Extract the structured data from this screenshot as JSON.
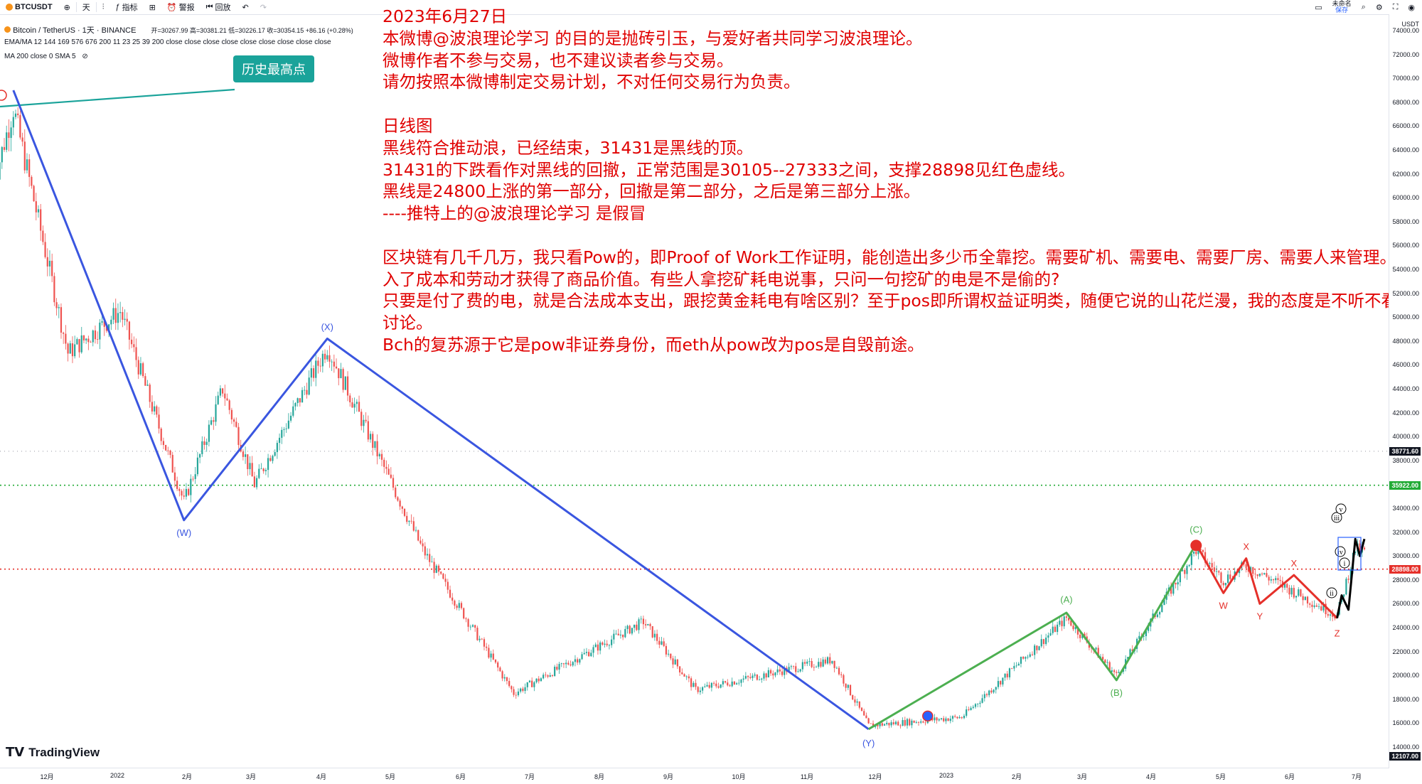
{
  "toolbar": {
    "symbol": "BTCUSDT",
    "interval": "天",
    "indicators_label": "指标",
    "alert_label": "警报",
    "replay_label": "回放",
    "unnamed_label": "未命名",
    "save_label": "保存"
  },
  "legend": {
    "title": "Bitcoin / TetherUS · 1天 · BINANCE",
    "ohlc": "开=30267.99 高=30381.21 低=30226.17 收=30354.15 +86.16 (+0.28%)",
    "indicator1": "EMA/MA 12 144 169 576 676 200 11 23 25 39 200 close close close close close close close close close",
    "indicator2": "MA 200 close 0 SMA 5"
  },
  "note_lines": [
    "2023年6月27日",
    "本微博@波浪理论学习 的目的是抛砖引玉，与爱好者共同学习波浪理论。",
    "微博作者不参与交易，也不建议读者参与交易。",
    "请勿按照本微博制定交易计划，不对任何交易行为负责。",
    "",
    "日线图",
    "黑线符合推动浪，已经结束，31431是黑线的顶。",
    "31431的下跌看作对黑线的回撤，正常范围是30105--27333之间，支撑28898见红色虚线。",
    "黑线是24800上涨的第一部分，回撤是第二部分，之后是第三部分上涨。",
    "----推特上的@波浪理论学习 是假冒",
    "",
    "区块链有几千几万，我只看Pow的，即Proof of Work工作证明，能创造出多少币全靠挖。需要矿机、需要电、需要厂房、需要人来管理。投入了成本和劳动才获得了商品价值。有些人拿挖矿耗电说事，只问一句挖矿的电是不是偷的?",
    "只要是付了费的电，就是合法成本支出，跟挖黄金耗电有啥区别？至于pos即所谓权益证明类，随便它说的山花烂漫，我的态度是不听不看不讨论。",
    "Bch的复苏源于它是pow非证券身份，而eth从pow改为pos是自毁前途。"
  ],
  "callout": "历史最高点",
  "brand": "TradingView",
  "axis": {
    "currency": "USDT",
    "y_ticks": [
      74000,
      72000,
      70000,
      68000,
      66000,
      64000,
      62000,
      60000,
      58000,
      56000,
      54000,
      52000,
      50000,
      48000,
      46000,
      44000,
      42000,
      40000,
      38000,
      36000,
      34000,
      32000,
      30000,
      28000,
      26000,
      24000,
      22000,
      20000,
      18000,
      16000,
      14000
    ],
    "price_tags": [
      {
        "label": "38771.60",
        "color": "#131722"
      },
      {
        "label": "35922.00",
        "color": "#22ab36"
      },
      {
        "label": "28898.00",
        "color": "#e5302a"
      },
      {
        "label": "12107.00",
        "color": "#131722"
      }
    ],
    "x_ticks": [
      "12月",
      "2022",
      "2月",
      "3月",
      "4月",
      "5月",
      "6月",
      "7月",
      "8月",
      "9月",
      "10月",
      "11月",
      "12月",
      "2023",
      "2月",
      "3月",
      "4月",
      "5月",
      "6月",
      "7月"
    ]
  },
  "chart_data": {
    "type": "line",
    "title": "Bitcoin / TetherUS · 1天 · BINANCE",
    "ylabel": "USDT",
    "ylim": [
      12107,
      74500
    ],
    "horizontal_levels": [
      {
        "value": 38771.6,
        "style": "dotted",
        "color": "#9598a1"
      },
      {
        "value": 35922,
        "style": "dotted",
        "color": "#22ab36"
      },
      {
        "value": 28898,
        "style": "dotted",
        "color": "#e5302a"
      }
    ],
    "wave_blue": {
      "labels": [
        "(W)",
        "(X)",
        "(Y)"
      ],
      "points": [
        [
          "2021-11-10",
          69000
        ],
        [
          "2022-01-24",
          33000
        ],
        [
          "2022-03-28",
          48200
        ],
        [
          "2022-11-21",
          15500
        ]
      ]
    },
    "wave_green": {
      "labels": [
        "(A)",
        "(B)",
        "(C)"
      ],
      "points": [
        [
          "2022-11-21",
          15500
        ],
        [
          "2023-02-16",
          25250
        ],
        [
          "2023-03-10",
          19600
        ],
        [
          "2023-04-14",
          31000
        ]
      ]
    },
    "wave_red": {
      "labels": [
        "W",
        "X",
        "Y",
        "X",
        "Z"
      ],
      "points": [
        [
          "2023-04-14",
          31000
        ],
        [
          "2023-04-26",
          26900
        ],
        [
          "2023-05-06",
          29800
        ],
        [
          "2023-05-12",
          26000
        ],
        [
          "2023-05-27",
          28400
        ],
        [
          "2023-06-15",
          24800
        ]
      ]
    },
    "wave_black": {
      "labels": [
        "i",
        "ii",
        "iii",
        "iv",
        "v"
      ],
      "points": [
        [
          "2023-06-15",
          24800
        ],
        [
          "2023-06-17",
          26700
        ],
        [
          "2023-06-20",
          25500
        ],
        [
          "2023-06-23",
          31431
        ],
        [
          "2023-06-25",
          30000
        ],
        [
          "2023-06-27",
          31431
        ]
      ]
    }
  }
}
